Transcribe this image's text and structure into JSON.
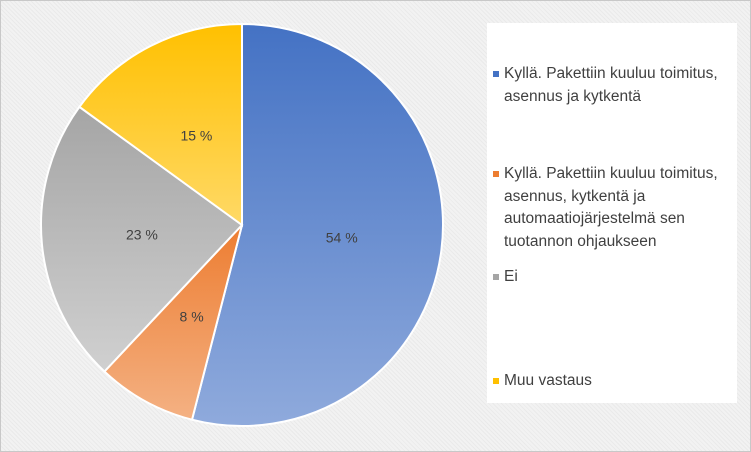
{
  "chart_data": {
    "type": "pie",
    "title": "",
    "slices": [
      {
        "label": "Kyllä. Pakettiin kuuluu toimitus, asennus ja kytkentä",
        "value": 54,
        "value_label": "54 %",
        "color": "#4472c4",
        "color_light": "#8faadc"
      },
      {
        "label": "Kyllä. Pakettiin kuuluu toimitus, asennus, kytkentä ja automaatiojärjestelmä sen tuotannon ohjaukseen",
        "value": 8,
        "value_label": "8 %",
        "color": "#ed7d31",
        "color_light": "#f4b183"
      },
      {
        "label": "Ei",
        "value": 23,
        "value_label": "23 %",
        "color": "#a5a5a5",
        "color_light": "#d0d0d0"
      },
      {
        "label": "Muu vastaus",
        "value": 15,
        "value_label": "15 %",
        "color": "#ffc000",
        "color_light": "#ffd966"
      }
    ],
    "legend_position": "right"
  }
}
